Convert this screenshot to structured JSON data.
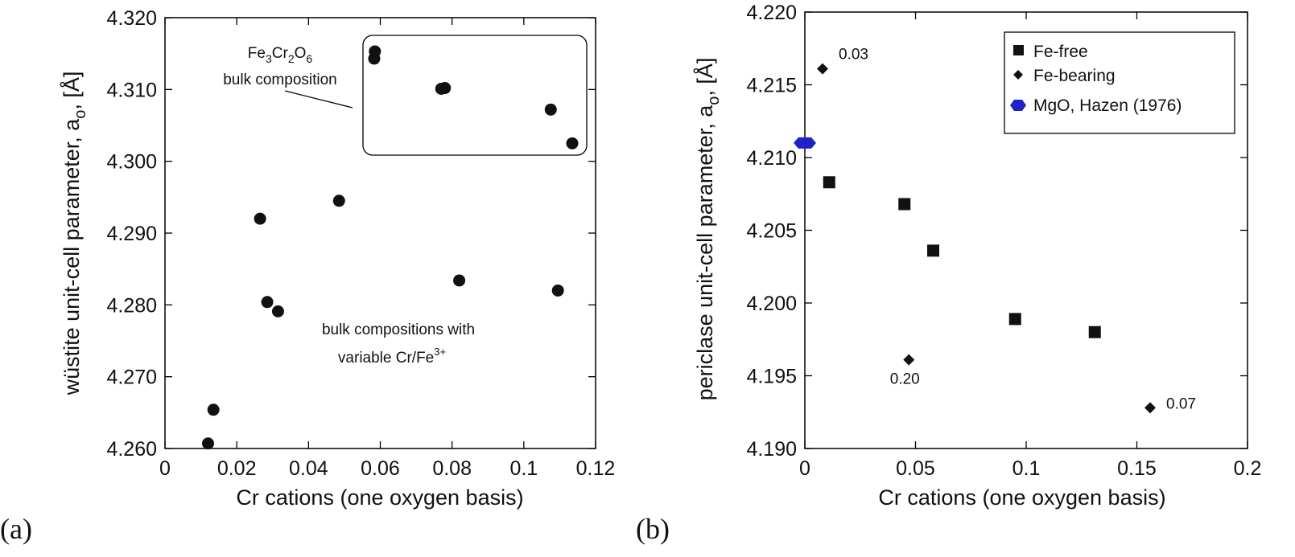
{
  "panel_labels": {
    "a": "(a)",
    "b": "(b)"
  },
  "chart_data": [
    {
      "type": "scatter",
      "xlabel": "Cr cations (one oxygen basis)",
      "ylabel": "wüstite unit-cell parameter, a",
      "ylabel_sub": "o",
      "ylabel_suffix": ", [Å]",
      "xlim": [
        0,
        0.12
      ],
      "ylim": [
        4.26,
        4.32
      ],
      "xticks": [
        0,
        0.02,
        0.04,
        0.06,
        0.08,
        0.1,
        0.12
      ],
      "xtick_labels": [
        "0",
        "0.02",
        "0.04",
        "0.06",
        "0.08",
        "0.1",
        "0.12"
      ],
      "yticks": [
        4.26,
        4.27,
        4.28,
        4.29,
        4.3,
        4.31,
        4.32
      ],
      "ytick_labels": [
        "4.260",
        "4.270",
        "4.280",
        "4.290",
        "4.300",
        "4.310",
        "4.320"
      ],
      "series": [
        {
          "name": "data",
          "marker": "circle",
          "points": [
            [
              0.012,
              4.2607
            ],
            [
              0.0135,
              4.2654
            ],
            [
              0.0265,
              4.292
            ],
            [
              0.0285,
              4.2804
            ],
            [
              0.0315,
              4.2791
            ],
            [
              0.0485,
              4.2945
            ],
            [
              0.0585,
              4.3153
            ],
            [
              0.0583,
              4.3143
            ],
            [
              0.077,
              4.3101
            ],
            [
              0.078,
              4.3102
            ],
            [
              0.082,
              4.2834
            ],
            [
              0.1075,
              4.3072
            ],
            [
              0.1095,
              4.282
            ],
            [
              0.1135,
              4.3025
            ]
          ]
        }
      ],
      "annotations": {
        "fe3cr2o6": {
          "pre": "Fe",
          "s1": "3",
          "mid": "Cr",
          "s2": "2",
          "o": "O",
          "s3": "6"
        },
        "fe3cr2o6_line2": "bulk composition",
        "variable_line1": "bulk compositions with",
        "variable_line2": "variable Cr/Fe",
        "variable_sup": "3+"
      }
    },
    {
      "type": "scatter",
      "xlabel": "Cr cations  (one oxygen basis)",
      "ylabel": "periclase unit-cell parameter, a",
      "ylabel_sub": "o",
      "ylabel_suffix": ", [Å]",
      "xlim": [
        0,
        0.2
      ],
      "ylim": [
        4.19,
        4.22
      ],
      "xticks": [
        0,
        0.05,
        0.1,
        0.15,
        0.2
      ],
      "xtick_labels": [
        "0",
        "0.05",
        "0.1",
        "0.15",
        "0.2"
      ],
      "yticks": [
        4.19,
        4.195,
        4.2,
        4.205,
        4.21,
        4.215,
        4.22
      ],
      "ytick_labels": [
        "4.190",
        "4.195",
        "4.200",
        "4.205",
        "4.210",
        "4.215",
        "4.220"
      ],
      "legend": [
        "Fe-free",
        "Fe-bearing",
        "MgO, Hazen (1976)"
      ],
      "legend_position": "top-right",
      "series": [
        {
          "name": "Fe-free",
          "marker": "square",
          "points": [
            [
              0.011,
              4.2083
            ],
            [
              0.045,
              4.2068
            ],
            [
              0.058,
              4.2036
            ],
            [
              0.095,
              4.1989
            ],
            [
              0.131,
              4.198
            ]
          ]
        },
        {
          "name": "Fe-bearing",
          "marker": "diamond",
          "points": [
            [
              0.008,
              4.2161
            ],
            [
              0.047,
              4.1961
            ],
            [
              0.156,
              4.1928
            ]
          ],
          "labels": [
            "0.03",
            "0.20",
            "0.07"
          ]
        },
        {
          "name": "MgO, Hazen (1976)",
          "marker": "hexagon",
          "color": "#1f22c8",
          "points": [
            [
              0.0,
              4.211
            ]
          ]
        }
      ]
    }
  ]
}
